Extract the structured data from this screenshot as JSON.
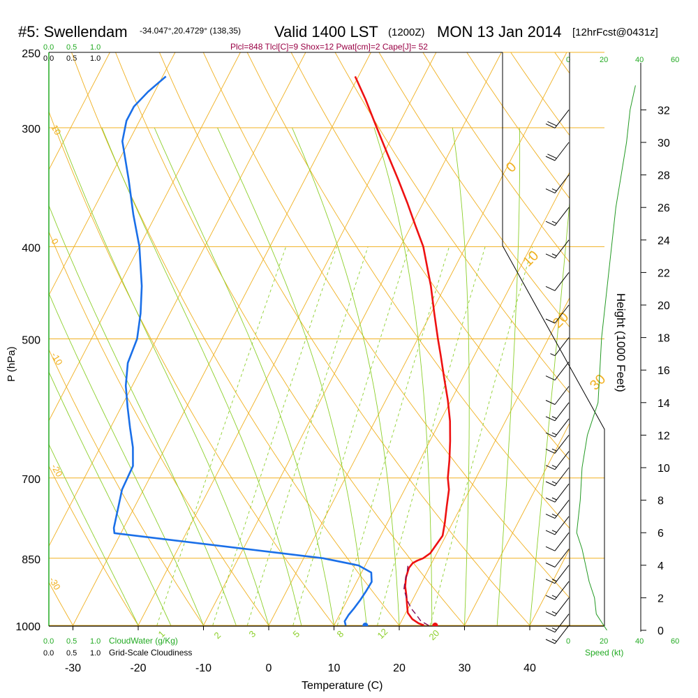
{
  "header": {
    "station": "#5: Swellendam",
    "coords": "-34.047°,20.4729° (138,35)",
    "valid": "Valid 1400 LST",
    "zulu": "(1200Z)",
    "date": "MON 13 Jan 2014",
    "forecast": "[12hrFcst@0431z]",
    "indices": "Plcl=848 Tlcl[C]=9 Shox=12 Pwat[cm]=2 Cape[J]= 52"
  },
  "colors": {
    "isotherm": "#f0b020",
    "dry_adiabat": "#f0b020",
    "moist_adiabat": "#8ccf2a",
    "mixing_ratio": "#8ccf2a",
    "temperature": "#ee1111",
    "dewpoint": "#1a6fe8",
    "parcel": "#7a0a5a",
    "speed": "#229922",
    "indices": "#990044"
  },
  "axes": {
    "x_label": "Temperature (C)",
    "y_label": "P (hPa)",
    "height_label": "Height (1000 Feet)",
    "x_ticks": [
      -30,
      -20,
      -10,
      0,
      10,
      20,
      30,
      40
    ],
    "p_ticks": [
      250,
      300,
      400,
      500,
      700,
      850,
      1000
    ],
    "height_ticks": [
      0,
      2,
      4,
      6,
      8,
      10,
      12,
      14,
      16,
      18,
      20,
      22,
      24,
      26,
      28,
      30,
      32
    ]
  },
  "top_scale": {
    "cloud_water_ticks": [
      "0.0",
      "0.5",
      "1.0"
    ],
    "cloudiness_ticks": [
      "0.0",
      "0.5",
      "1.0"
    ],
    "speed_ticks": [
      "0",
      "20",
      "40",
      "60"
    ]
  },
  "bottom_scale": {
    "cloud_water_ticks": [
      "0.0",
      "0.5",
      "1.0"
    ],
    "cloud_water_label": "CloudWater (g/Kg)",
    "cloudiness_ticks": [
      "0.0",
      "0.5",
      "1.0"
    ],
    "cloudiness_label": "Grid-Scale Cloudiness",
    "speed_ticks": [
      "0",
      "20",
      "40",
      "60"
    ],
    "speed_label": "Speed (kt)"
  },
  "chart_data": {
    "type": "line",
    "temperature_profile": {
      "pressure_hpa": [
        1000,
        995,
        985,
        970,
        950,
        930,
        910,
        890,
        870,
        860,
        855,
        850,
        840,
        825,
        805,
        780,
        750,
        720,
        700,
        670,
        640,
        610,
        580,
        550,
        520,
        500,
        470,
        440,
        400,
        380,
        360,
        340,
        320,
        300,
        280,
        265
      ],
      "temp_c": [
        23.8,
        22.8,
        21.5,
        20.3,
        19.5,
        18.7,
        17.8,
        17.2,
        16.9,
        17.1,
        17.6,
        18.3,
        19.0,
        19.2,
        19.5,
        18.8,
        17.8,
        16.8,
        15.7,
        14.5,
        13.1,
        11.5,
        9.5,
        7.2,
        4.8,
        3.1,
        0.5,
        -2.2,
        -6.5,
        -9.4,
        -12.4,
        -15.7,
        -19.3,
        -23.1,
        -27.1,
        -30.5
      ]
    },
    "dewpoint_profile": {
      "pressure_hpa": [
        1000,
        990,
        975,
        960,
        940,
        920,
        900,
        880,
        865,
        850,
        800,
        790,
        750,
        720,
        680,
        650,
        620,
        590,
        560,
        530,
        500,
        470,
        440,
        400,
        370,
        340,
        310,
        295,
        285,
        275,
        265
      ],
      "dewpoint_c": [
        11.8,
        11.3,
        11.4,
        11.7,
        12.0,
        12.2,
        12.3,
        11.5,
        9.0,
        3.0,
        -31.0,
        -31.5,
        -32.5,
        -33.3,
        -33.5,
        -35.0,
        -37.0,
        -39.0,
        -41.0,
        -42.5,
        -43.0,
        -44.5,
        -46.5,
        -50.0,
        -53.5,
        -57.0,
        -61.0,
        -62.0,
        -62.0,
        -61.0,
        -59.5
      ]
    },
    "parcel_path": {
      "pressure_hpa": [
        1000,
        990,
        975,
        960,
        945,
        930,
        915,
        900,
        880,
        860
      ],
      "temp_c": [
        24.5,
        23.0,
        21.8,
        20.5,
        19.5,
        18.6,
        17.8,
        17.4,
        17.0,
        16.4
      ]
    },
    "surface_temp_c": 25.5,
    "surface_dewpoint_c": 14.8,
    "isotherm_labels": [
      "0",
      "10",
      "20",
      "30"
    ],
    "dry_adiabat_labels": [
      "10",
      "0",
      "-10",
      "-20",
      "-30"
    ],
    "mixing_ratio_labels": [
      "1",
      "2",
      "3",
      "5",
      "8",
      "12",
      "20"
    ],
    "wind_barbs": [
      {
        "height_kft": 32,
        "speed_kt": 20
      },
      {
        "height_kft": 30,
        "speed_kt": 20
      },
      {
        "height_kft": 28,
        "speed_kt": 15
      },
      {
        "height_kft": 26,
        "speed_kt": 15
      },
      {
        "height_kft": 24,
        "speed_kt": 15
      },
      {
        "height_kft": 22,
        "speed_kt": 10
      },
      {
        "height_kft": 20,
        "speed_kt": 10
      },
      {
        "height_kft": 18,
        "speed_kt": 5
      },
      {
        "height_kft": 16.5,
        "speed_kt": 10
      },
      {
        "height_kft": 15,
        "speed_kt": 10
      },
      {
        "height_kft": 14,
        "speed_kt": 15
      },
      {
        "height_kft": 13,
        "speed_kt": 15
      },
      {
        "height_kft": 12,
        "speed_kt": 15
      },
      {
        "height_kft": 11,
        "speed_kt": 15
      },
      {
        "height_kft": 10,
        "speed_kt": 15
      },
      {
        "height_kft": 9,
        "speed_kt": 15
      },
      {
        "height_kft": 8,
        "speed_kt": 15
      },
      {
        "height_kft": 7,
        "speed_kt": 15
      },
      {
        "height_kft": 6,
        "speed_kt": 10
      },
      {
        "height_kft": 5,
        "speed_kt": 10
      },
      {
        "height_kft": 4,
        "speed_kt": 15
      },
      {
        "height_kft": 3,
        "speed_kt": 15
      },
      {
        "height_kft": 2,
        "speed_kt": 15
      },
      {
        "height_kft": 1,
        "speed_kt": 15
      },
      {
        "height_kft": 0.3,
        "speed_kt": 15
      }
    ],
    "speed_profile": {
      "height_kft": [
        0,
        0.5,
        1,
        2,
        3,
        4,
        5,
        6,
        8,
        10,
        12,
        14,
        16,
        18,
        20,
        22,
        24,
        26,
        28,
        30,
        32,
        33.5
      ],
      "speed_kt": [
        21,
        18,
        15,
        14,
        11,
        9,
        7,
        4,
        6,
        7,
        10,
        16,
        17,
        18,
        20,
        22,
        24,
        26,
        29,
        32,
        34,
        37
      ]
    }
  }
}
